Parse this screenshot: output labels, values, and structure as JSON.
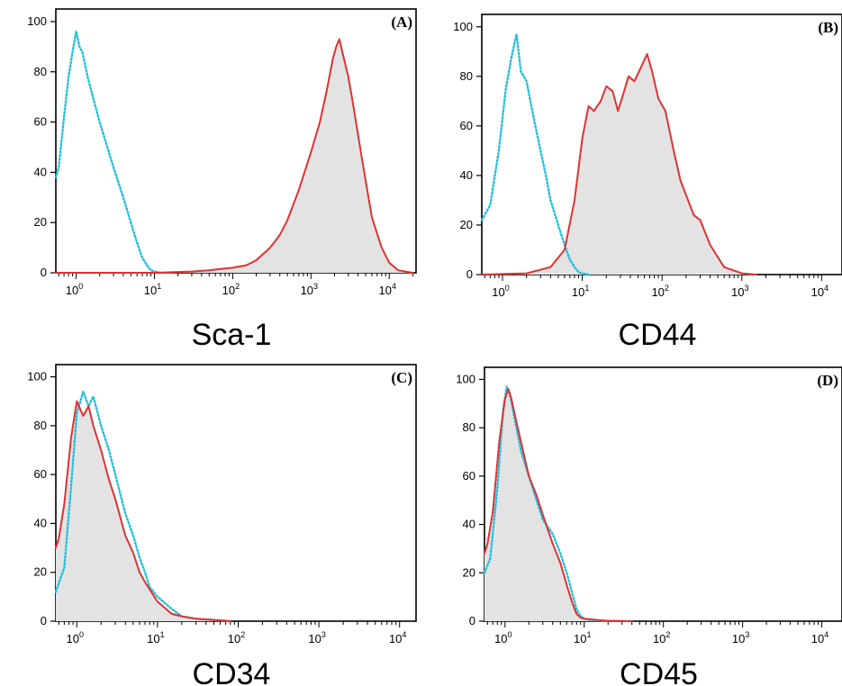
{
  "chart_data": [
    {
      "type": "area",
      "panel_label": "(A)",
      "xlabel": "Sca-1",
      "ylabel": "",
      "xscale": "log",
      "xlim": [
        0.55,
        22000
      ],
      "ylim": [
        0,
        105
      ],
      "yticks": [
        0,
        20,
        40,
        60,
        80,
        100
      ],
      "xticks": [
        {
          "value": 1,
          "base": "10",
          "exp": "0"
        },
        {
          "value": 10,
          "base": "10",
          "exp": "1"
        },
        {
          "value": 100,
          "base": "10",
          "exp": "2"
        },
        {
          "value": 1000,
          "base": "10",
          "exp": "3"
        },
        {
          "value": 10000,
          "base": "10",
          "exp": "4"
        }
      ],
      "series": [
        {
          "color": "#22c0dd",
          "style": "dotted",
          "filled": false,
          "x": [
            0.55,
            0.6,
            0.7,
            0.8,
            0.9,
            1.0,
            1.1,
            1.2,
            1.4,
            1.7,
            2.0,
            2.5,
            3.0,
            4.0,
            5.0,
            6.0,
            7.0,
            8.0,
            9.0,
            10.0,
            12.0
          ],
          "y": [
            38,
            42,
            62,
            78,
            88,
            96,
            90,
            88,
            78,
            68,
            60,
            50,
            42,
            30,
            20,
            12,
            6,
            3,
            1,
            0.5,
            0
          ]
        },
        {
          "color": "#dd3333",
          "style": "solid",
          "filled": true,
          "x": [
            0.55,
            10,
            30,
            50,
            70,
            100,
            150,
            200,
            300,
            400,
            500,
            700,
            1000,
            1300,
            1600,
            1900,
            2100,
            2300,
            2600,
            3000,
            3500,
            4500,
            6000,
            8000,
            10000,
            13000,
            16000,
            20000
          ],
          "y": [
            0,
            0,
            0.5,
            1,
            1.5,
            2,
            3,
            5,
            10,
            15,
            21,
            33,
            48,
            60,
            73,
            85,
            90,
            93,
            86,
            78,
            66,
            45,
            22,
            10,
            4,
            1,
            0.5,
            0
          ]
        }
      ]
    },
    {
      "type": "area",
      "panel_label": "(B)",
      "xlabel": "CD44",
      "ylabel": "",
      "xscale": "log",
      "xlim": [
        0.55,
        18000
      ],
      "ylim": [
        0,
        105
      ],
      "yticks": [
        0,
        20,
        40,
        60,
        80,
        100
      ],
      "xticks": [
        {
          "value": 1,
          "base": "10",
          "exp": "0"
        },
        {
          "value": 10,
          "base": "10",
          "exp": "1"
        },
        {
          "value": 100,
          "base": "10",
          "exp": "2"
        },
        {
          "value": 1000,
          "base": "10",
          "exp": "3"
        },
        {
          "value": 10000,
          "base": "10",
          "exp": "4"
        }
      ],
      "series": [
        {
          "color": "#22c0dd",
          "style": "dotted",
          "filled": false,
          "x": [
            0.55,
            0.7,
            0.9,
            1.1,
            1.3,
            1.5,
            1.7,
            2.0,
            2.5,
            3.0,
            3.5,
            4.0,
            5.0,
            6.0,
            7.0,
            8.0,
            9.0,
            10.0,
            12.0
          ],
          "y": [
            22,
            28,
            50,
            75,
            88,
            97,
            82,
            78,
            62,
            50,
            40,
            30,
            20,
            12,
            6,
            3,
            1,
            0.5,
            0
          ]
        },
        {
          "color": "#dd3333",
          "style": "solid",
          "filled": true,
          "x": [
            0.55,
            2,
            4,
            6,
            8,
            10,
            12,
            14,
            17,
            20,
            24,
            28,
            32,
            38,
            45,
            55,
            65,
            75,
            90,
            110,
            140,
            170,
            200,
            250,
            300,
            400,
            600,
            1000,
            1500
          ],
          "y": [
            0,
            0.5,
            3,
            10,
            30,
            55,
            68,
            66,
            70,
            76,
            74,
            66,
            72,
            80,
            78,
            84,
            89,
            82,
            71,
            66,
            50,
            38,
            32,
            24,
            22,
            12,
            3,
            0.5,
            0
          ]
        }
      ]
    },
    {
      "type": "area",
      "panel_label": "(C)",
      "xlabel": "CD34",
      "ylabel": "",
      "xscale": "log",
      "xlim": [
        0.55,
        16000
      ],
      "ylim": [
        0,
        105
      ],
      "yticks": [
        0,
        20,
        40,
        60,
        80,
        100
      ],
      "xticks": [
        {
          "value": 1,
          "base": "10",
          "exp": "0"
        },
        {
          "value": 10,
          "base": "10",
          "exp": "1"
        },
        {
          "value": 100,
          "base": "10",
          "exp": "2"
        },
        {
          "value": 1000,
          "base": "10",
          "exp": "3"
        },
        {
          "value": 10000,
          "base": "10",
          "exp": "4"
        }
      ],
      "series": [
        {
          "color": "#22c0dd",
          "style": "dotted",
          "filled": false,
          "x": [
            0.55,
            0.7,
            0.85,
            1.0,
            1.2,
            1.4,
            1.6,
            2.0,
            2.5,
            3.0,
            4.0,
            5.0,
            6.0,
            7.0,
            8.0,
            10,
            15,
            20,
            30,
            50,
            80
          ],
          "y": [
            12,
            22,
            55,
            85,
            94,
            88,
            92,
            80,
            70,
            60,
            44,
            35,
            26,
            20,
            14,
            10,
            5,
            2,
            1,
            0.5,
            0
          ]
        },
        {
          "color": "#dd3333",
          "style": "solid",
          "filled": true,
          "x": [
            0.55,
            0.6,
            0.7,
            0.85,
            1.0,
            1.2,
            1.4,
            1.6,
            2.0,
            2.5,
            3.0,
            4.0,
            5.0,
            6.0,
            7.0,
            8.0,
            10,
            15,
            20,
            30,
            50,
            80
          ],
          "y": [
            30,
            34,
            48,
            75,
            90,
            84,
            88,
            80,
            70,
            58,
            50,
            35,
            28,
            20,
            16,
            13,
            8,
            3,
            2,
            1,
            0.5,
            0
          ]
        }
      ]
    },
    {
      "type": "area",
      "panel_label": "(D)",
      "xlabel": "CD45",
      "ylabel": "",
      "xscale": "log",
      "xlim": [
        0.55,
        18000
      ],
      "ylim": [
        0,
        105
      ],
      "yticks": [
        0,
        20,
        40,
        60,
        80,
        100
      ],
      "xticks": [
        {
          "value": 1,
          "base": "10",
          "exp": "0"
        },
        {
          "value": 10,
          "base": "10",
          "exp": "1"
        },
        {
          "value": 100,
          "base": "10",
          "exp": "2"
        },
        {
          "value": 1000,
          "base": "10",
          "exp": "3"
        },
        {
          "value": 10000,
          "base": "10",
          "exp": "4"
        }
      ],
      "series": [
        {
          "color": "#22c0dd",
          "style": "dotted",
          "filled": false,
          "x": [
            0.55,
            0.65,
            0.8,
            0.95,
            1.05,
            1.15,
            1.3,
            1.6,
            2.0,
            2.5,
            3.0,
            4.0,
            5.0,
            6.0,
            7.0,
            8.0,
            9.0,
            10,
            12,
            20
          ],
          "y": [
            20,
            26,
            55,
            88,
            97,
            94,
            85,
            70,
            60,
            50,
            42,
            36,
            28,
            20,
            12,
            5,
            2,
            1,
            0.5,
            0
          ]
        },
        {
          "color": "#dd3333",
          "style": "solid",
          "filled": true,
          "x": [
            0.55,
            0.6,
            0.7,
            0.85,
            1.0,
            1.1,
            1.2,
            1.4,
            1.7,
            2.0,
            2.5,
            3.0,
            4.0,
            5.0,
            6.0,
            7.0,
            8.0,
            9.0,
            10,
            15,
            20,
            40
          ],
          "y": [
            28,
            32,
            45,
            75,
            92,
            96,
            92,
            82,
            70,
            60,
            52,
            44,
            32,
            24,
            15,
            8,
            3,
            1.5,
            1,
            0.5,
            0.2,
            0
          ]
        }
      ]
    }
  ]
}
